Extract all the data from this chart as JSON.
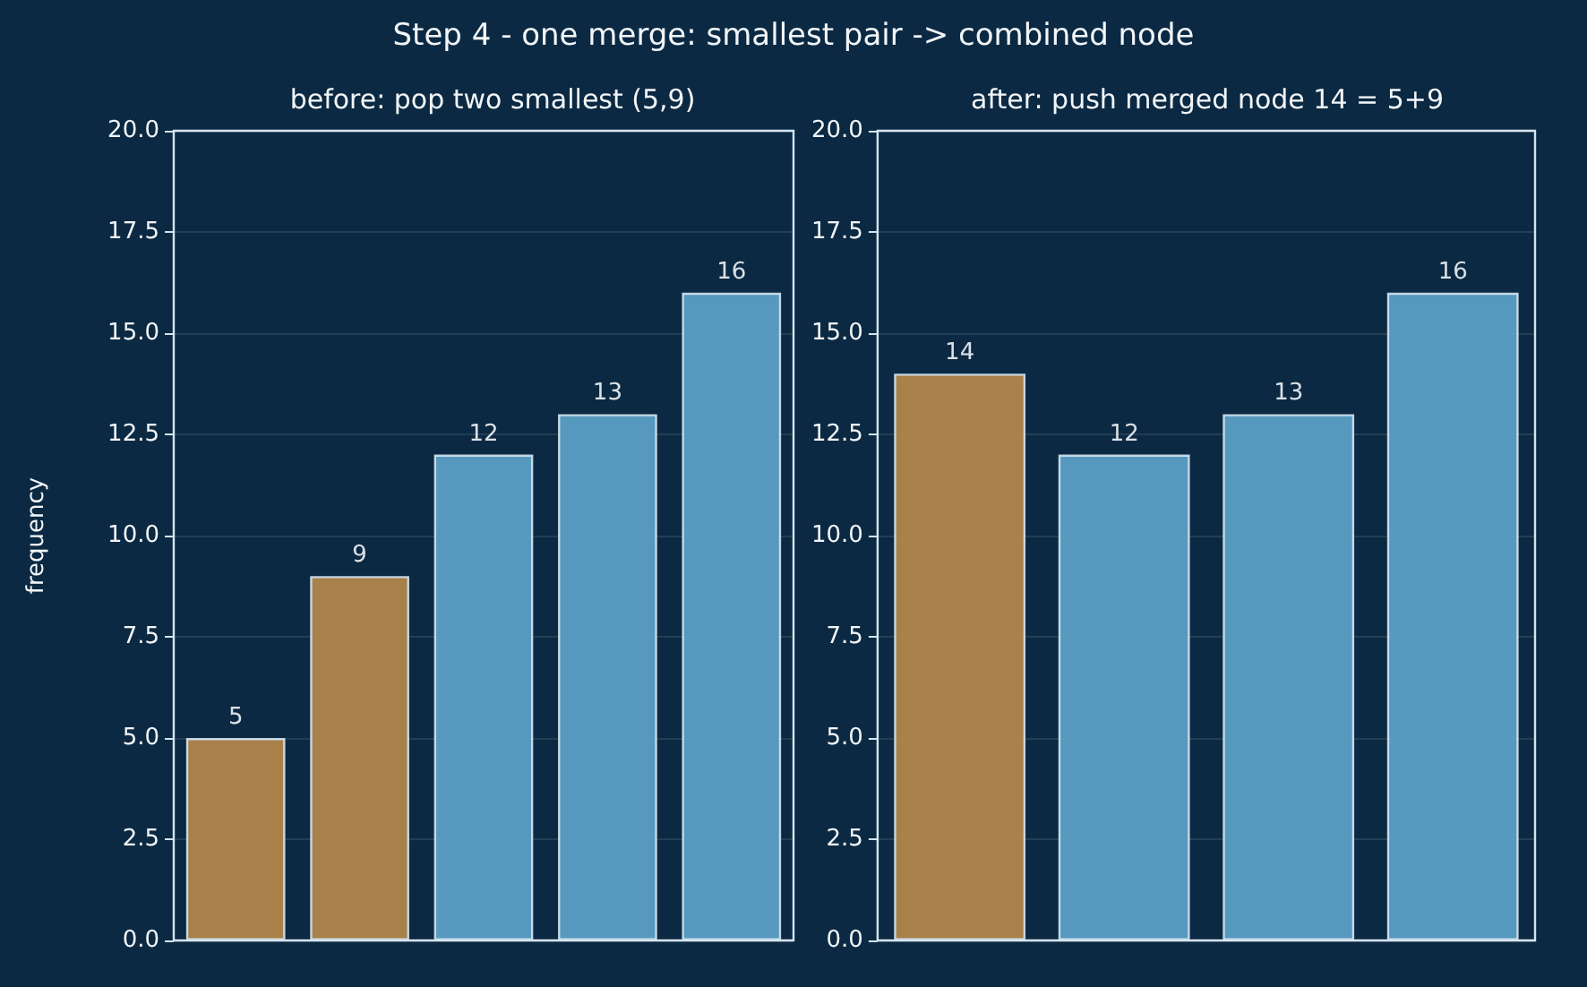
{
  "chart_data": [
    {
      "type": "bar",
      "title": "before: pop two smallest (5,9)",
      "annotations": [
        "Step 4 - one merge: smallest pair -> combined node"
      ],
      "ylabel": "frequency",
      "categories": [
        null,
        null,
        null,
        null,
        null
      ],
      "values": [
        5,
        9,
        12,
        13,
        16
      ],
      "colors": [
        "#b88a4b",
        "#b88a4b",
        "#5fa4cd",
        "#5fa4cd",
        "#5fa4cd"
      ],
      "ylim": [
        0,
        20
      ],
      "yticks": [
        {
          "value": 0,
          "label": "0.0"
        },
        {
          "value": 2.5,
          "label": "2.5"
        },
        {
          "value": 5,
          "label": "5.0"
        },
        {
          "value": 7.5,
          "label": "7.5"
        },
        {
          "value": 10,
          "label": "10.0"
        },
        {
          "value": 12.5,
          "label": "12.5"
        },
        {
          "value": 15,
          "label": "15.0"
        },
        {
          "value": 17.5,
          "label": "17.5"
        },
        {
          "value": 20,
          "label": "20.0"
        }
      ],
      "grid": "y",
      "data_labels": true
    },
    {
      "type": "bar",
      "title": "after: push merged node 14 = 5+9",
      "categories": [
        null,
        null,
        null,
        null
      ],
      "values": [
        14,
        12,
        13,
        16
      ],
      "colors": [
        "#b88a4b",
        "#5fa4cd",
        "#5fa4cd",
        "#5fa4cd"
      ],
      "ylim": [
        0,
        20
      ],
      "yticks": [
        {
          "value": 0,
          "label": "0.0"
        },
        {
          "value": 2.5,
          "label": "2.5"
        },
        {
          "value": 5,
          "label": "5.0"
        },
        {
          "value": 7.5,
          "label": "7.5"
        },
        {
          "value": 10,
          "label": "10.0"
        },
        {
          "value": 12.5,
          "label": "12.5"
        },
        {
          "value": 15,
          "label": "15.0"
        },
        {
          "value": 17.5,
          "label": "17.5"
        },
        {
          "value": 20,
          "label": "20.0"
        }
      ],
      "grid": "y",
      "data_labels": true
    }
  ]
}
